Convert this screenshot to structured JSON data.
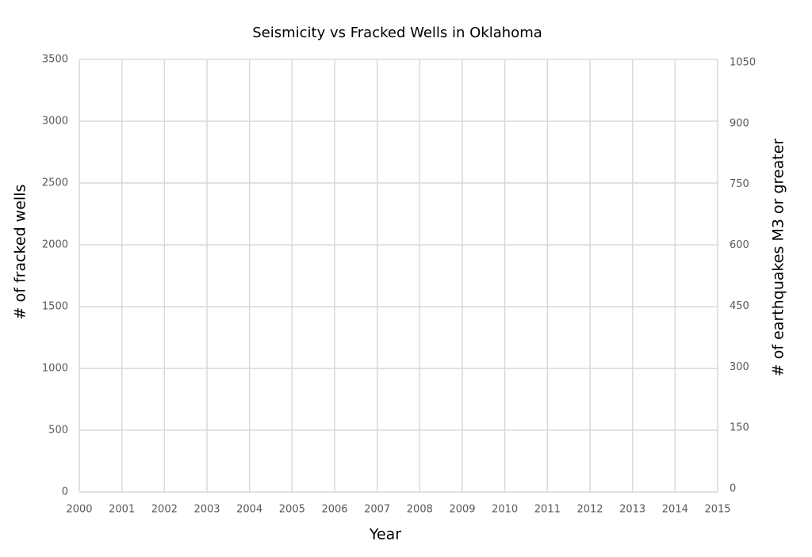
{
  "chart_data": {
    "type": "line",
    "title": "Seismicity vs Fracked Wells in Oklahoma",
    "x_label": "Year",
    "y_label": "# of fracked wells",
    "y2_label": "# of earthquakes M3 or greater",
    "xlim": [
      2000,
      2015
    ],
    "xticks": [
      2000,
      2001,
      2002,
      2003,
      2004,
      2005,
      2006,
      2007,
      2008,
      2009,
      2010,
      2011,
      2012,
      2013,
      2014,
      2015
    ],
    "ylim": [
      0,
      3500
    ],
    "yticks": [
      0,
      500,
      1000,
      1500,
      2000,
      2500,
      3000,
      3500
    ],
    "y2lim": [
      0,
      1050
    ],
    "y2ticks": [
      0,
      150,
      300,
      450,
      600,
      750,
      900,
      1050
    ],
    "grid": true,
    "series": []
  }
}
